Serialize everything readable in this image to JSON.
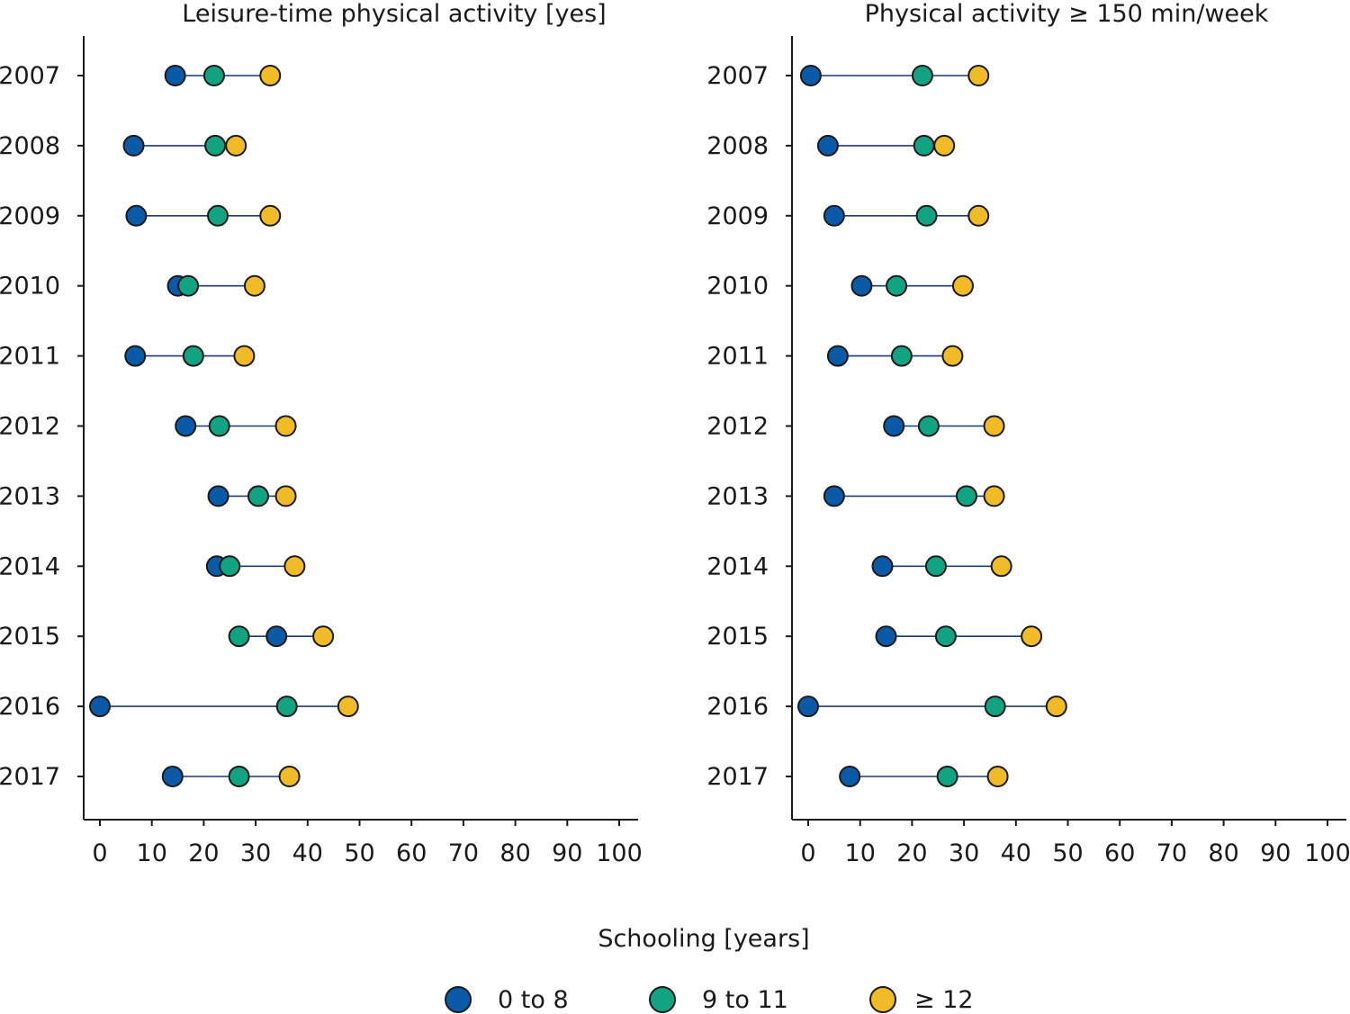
{
  "legend": {
    "title": "Schooling [years]",
    "items": [
      {
        "key": "low",
        "label": "0 to 8",
        "color": "#0b5aa8"
      },
      {
        "key": "mid",
        "label": "9 to 11",
        "color": "#12a383"
      },
      {
        "key": "high",
        "label": "≥ 12",
        "color": "#f0bb26"
      }
    ]
  },
  "chart_data": [
    {
      "type": "scatter",
      "style": "dumbbell",
      "title": "Leisure-time physical activity [yes]",
      "categories": [
        "2007",
        "2008",
        "2009",
        "2010",
        "2011",
        "2012",
        "2013",
        "2014",
        "2015",
        "2016",
        "2017"
      ],
      "xlim": [
        0,
        100
      ],
      "xticks": [
        "0",
        "10",
        "20",
        "30",
        "40",
        "50",
        "60",
        "70",
        "80",
        "90",
        "100"
      ],
      "series": [
        {
          "name": "0 to 8",
          "values": [
            14.5,
            6.5,
            7,
            15,
            6.8,
            16.5,
            22.8,
            22.5,
            34,
            0,
            14
          ]
        },
        {
          "name": "9 to 11",
          "values": [
            22,
            22.2,
            22.7,
            17,
            18,
            23,
            30.5,
            25,
            26.8,
            36,
            26.8
          ]
        },
        {
          "name": "≥ 12",
          "values": [
            32.8,
            26.2,
            32.8,
            29.8,
            27.8,
            35.8,
            35.8,
            37.5,
            43,
            47.8,
            36.5
          ]
        }
      ],
      "grid": false
    },
    {
      "type": "scatter",
      "style": "dumbbell",
      "title": "Physical activity ≥ 150 min/week",
      "categories": [
        "2007",
        "2008",
        "2009",
        "2010",
        "2011",
        "2012",
        "2013",
        "2014",
        "2015",
        "2016",
        "2017"
      ],
      "xlim": [
        0,
        100
      ],
      "xticks": [
        "0",
        "10",
        "20",
        "30",
        "40",
        "50",
        "60",
        "70",
        "80",
        "90",
        "100"
      ],
      "series": [
        {
          "name": "0 to 8",
          "values": [
            0.5,
            3.8,
            5,
            10.3,
            5.7,
            16.5,
            5,
            14.3,
            15,
            0,
            8
          ]
        },
        {
          "name": "9 to 11",
          "values": [
            22,
            22.3,
            22.8,
            17,
            18,
            23.2,
            30.5,
            24.6,
            26.5,
            36,
            26.8
          ]
        },
        {
          "name": "≥ 12",
          "values": [
            32.8,
            26.2,
            32.8,
            29.8,
            27.8,
            35.8,
            35.8,
            37.2,
            43,
            47.8,
            36.5
          ]
        }
      ],
      "grid": false
    }
  ]
}
